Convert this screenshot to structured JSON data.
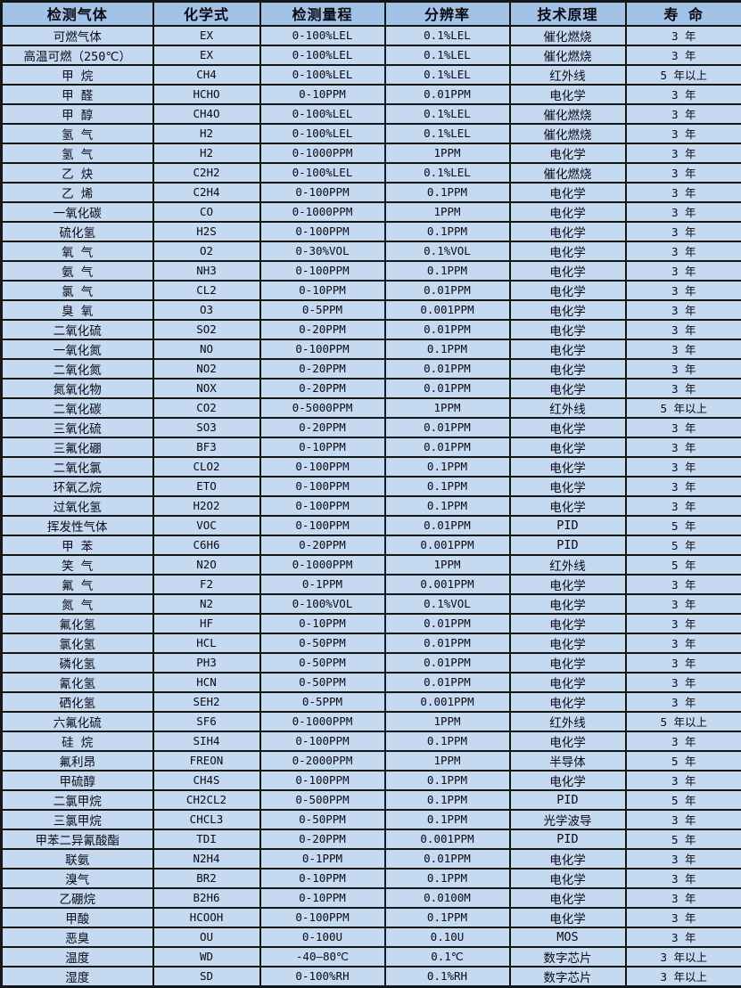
{
  "colors": {
    "header_bg": "#a2c2e6",
    "row_bg": "#c5d9f1",
    "border": "#161616",
    "text": "#0a0a14"
  },
  "table": {
    "columns": [
      {
        "key": "gas",
        "label": "检测气体"
      },
      {
        "key": "formula",
        "label": "化学式"
      },
      {
        "key": "range",
        "label": "检测量程"
      },
      {
        "key": "resolution",
        "label": "分辨率"
      },
      {
        "key": "principle",
        "label": "技术原理"
      },
      {
        "key": "lifespan",
        "label": "寿 命"
      }
    ],
    "rows": [
      [
        "可燃气体",
        "EX",
        "0-100%LEL",
        "0.1%LEL",
        "催化燃烧",
        "3 年"
      ],
      [
        "高温可燃（250℃）",
        "EX",
        "0-100%LEL",
        "0.1%LEL",
        "催化燃烧",
        "3 年"
      ],
      [
        "甲 烷",
        "CH4",
        "0-100%LEL",
        "0.1%LEL",
        "红外线",
        "5 年以上"
      ],
      [
        "甲 醛",
        "HCHO",
        "0-10PPM",
        "0.01PPM",
        "电化学",
        "3 年"
      ],
      [
        "甲 醇",
        "CH4O",
        "0-100%LEL",
        "0.1%LEL",
        "催化燃烧",
        "3 年"
      ],
      [
        "氢 气",
        "H2",
        "0-100%LEL",
        "0.1%LEL",
        "催化燃烧",
        "3 年"
      ],
      [
        "氢 气",
        "H2",
        "0-1000PPM",
        "1PPM",
        "电化学",
        "3 年"
      ],
      [
        "乙 炔",
        "C2H2",
        "0-100%LEL",
        "0.1%LEL",
        "催化燃烧",
        "3 年"
      ],
      [
        "乙 烯",
        "C2H4",
        "0-100PPM",
        "0.1PPM",
        "电化学",
        "3 年"
      ],
      [
        "一氧化碳",
        "CO",
        "0-1000PPM",
        "1PPM",
        "电化学",
        "3 年"
      ],
      [
        "硫化氢",
        "H2S",
        "0-100PPM",
        "0.1PPM",
        "电化学",
        "3 年"
      ],
      [
        "氧 气",
        "O2",
        "0-30%VOL",
        "0.1%VOL",
        "电化学",
        "3 年"
      ],
      [
        "氨 气",
        "NH3",
        "0-100PPM",
        "0.1PPM",
        "电化学",
        "3 年"
      ],
      [
        "氯 气",
        "CL2",
        "0-10PPM",
        "0.01PPM",
        "电化学",
        "3 年"
      ],
      [
        "臭 氧",
        "O3",
        "0-5PPM",
        "0.001PPM",
        "电化学",
        "3 年"
      ],
      [
        "二氧化硫",
        "SO2",
        "0-20PPM",
        "0.01PPM",
        "电化学",
        "3 年"
      ],
      [
        "一氧化氮",
        "NO",
        "0-100PPM",
        "0.1PPM",
        "电化学",
        "3 年"
      ],
      [
        "二氧化氮",
        "NO2",
        "0-20PPM",
        "0.01PPM",
        "电化学",
        "3 年"
      ],
      [
        "氮氧化物",
        "NOX",
        "0-20PPM",
        "0.01PPM",
        "电化学",
        "3 年"
      ],
      [
        "二氧化碳",
        "CO2",
        "0-5000PPM",
        "1PPM",
        "红外线",
        "5 年以上"
      ],
      [
        "三氧化硫",
        "SO3",
        "0-20PPM",
        "0.01PPM",
        "电化学",
        "3 年"
      ],
      [
        "三氟化硼",
        "BF3",
        "0-10PPM",
        "0.01PPM",
        "电化学",
        "3 年"
      ],
      [
        "二氧化氯",
        "CLO2",
        "0-100PPM",
        "0.1PPM",
        "电化学",
        "3 年"
      ],
      [
        "环氧乙烷",
        "ETO",
        "0-100PPM",
        "0.1PPM",
        "电化学",
        "3 年"
      ],
      [
        "过氧化氢",
        "H2O2",
        "0-100PPM",
        "0.1PPM",
        "电化学",
        "3 年"
      ],
      [
        "挥发性气体",
        "VOC",
        "0-100PPM",
        "0.01PPM",
        "PID",
        "5 年"
      ],
      [
        "甲 苯",
        "C6H6",
        "0-20PPM",
        "0.001PPM",
        "PID",
        "5 年"
      ],
      [
        "笑 气",
        "N2O",
        "0-1000PPM",
        "1PPM",
        "红外线",
        "5 年"
      ],
      [
        "氟 气",
        "F2",
        "0-1PPM",
        "0.001PPM",
        "电化学",
        "3 年"
      ],
      [
        "氮 气",
        "N2",
        "0-100%VOL",
        "0.1%VOL",
        "电化学",
        "3 年"
      ],
      [
        "氟化氢",
        "HF",
        "0-10PPM",
        "0.01PPM",
        "电化学",
        "3 年"
      ],
      [
        "氯化氢",
        "HCL",
        "0-50PPM",
        "0.01PPM",
        "电化学",
        "3 年"
      ],
      [
        "磷化氢",
        "PH3",
        "0-50PPM",
        "0.01PPM",
        "电化学",
        "3 年"
      ],
      [
        "氰化氢",
        "HCN",
        "0-50PPM",
        "0.01PPM",
        "电化学",
        "3 年"
      ],
      [
        "硒化氢",
        "SEH2",
        "0-5PPM",
        "0.001PPM",
        "电化学",
        "3 年"
      ],
      [
        "六氟化硫",
        "SF6",
        "0-1000PPM",
        "1PPM",
        "红外线",
        "5 年以上"
      ],
      [
        "硅 烷",
        "SIH4",
        "0-100PPM",
        "0.1PPM",
        "电化学",
        "3 年"
      ],
      [
        "氟利昂",
        "FREON",
        "0-2000PPM",
        "1PPM",
        "半导体",
        "5 年"
      ],
      [
        "甲硫醇",
        "CH4S",
        "0-100PPM",
        "0.1PPM",
        "电化学",
        "3 年"
      ],
      [
        "二氯甲烷",
        "CH2CL2",
        "0-500PPM",
        "0.1PPM",
        "PID",
        "5 年"
      ],
      [
        "三氯甲烷",
        "CHCL3",
        "0-50PPM",
        "0.1PPM",
        "光学波导",
        "3 年"
      ],
      [
        "甲苯二异氰酸酯",
        "TDI",
        "0-20PPM",
        "0.001PPM",
        "PID",
        "5 年"
      ],
      [
        "联氨",
        "N2H4",
        "0-1PPM",
        "0.01PPM",
        "电化学",
        "3 年"
      ],
      [
        "溴气",
        "BR2",
        "0-10PPM",
        "0.1PPM",
        "电化学",
        "3 年"
      ],
      [
        "乙硼烷",
        "B2H6",
        "0-10PPM",
        "0.0100M",
        "电化学",
        "3 年"
      ],
      [
        "甲酸",
        "HCOOH",
        "0-100PPM",
        "0.1PPM",
        "电化学",
        "3 年"
      ],
      [
        "恶臭",
        "OU",
        "0-100U",
        "0.10U",
        "MOS",
        "3 年"
      ],
      [
        "温度",
        "WD",
        "-40—80℃",
        "0.1℃",
        "数字芯片",
        "3 年以上"
      ],
      [
        "湿度",
        "SD",
        "0-100%RH",
        "0.1%RH",
        "数字芯片",
        "3 年以上"
      ]
    ]
  }
}
